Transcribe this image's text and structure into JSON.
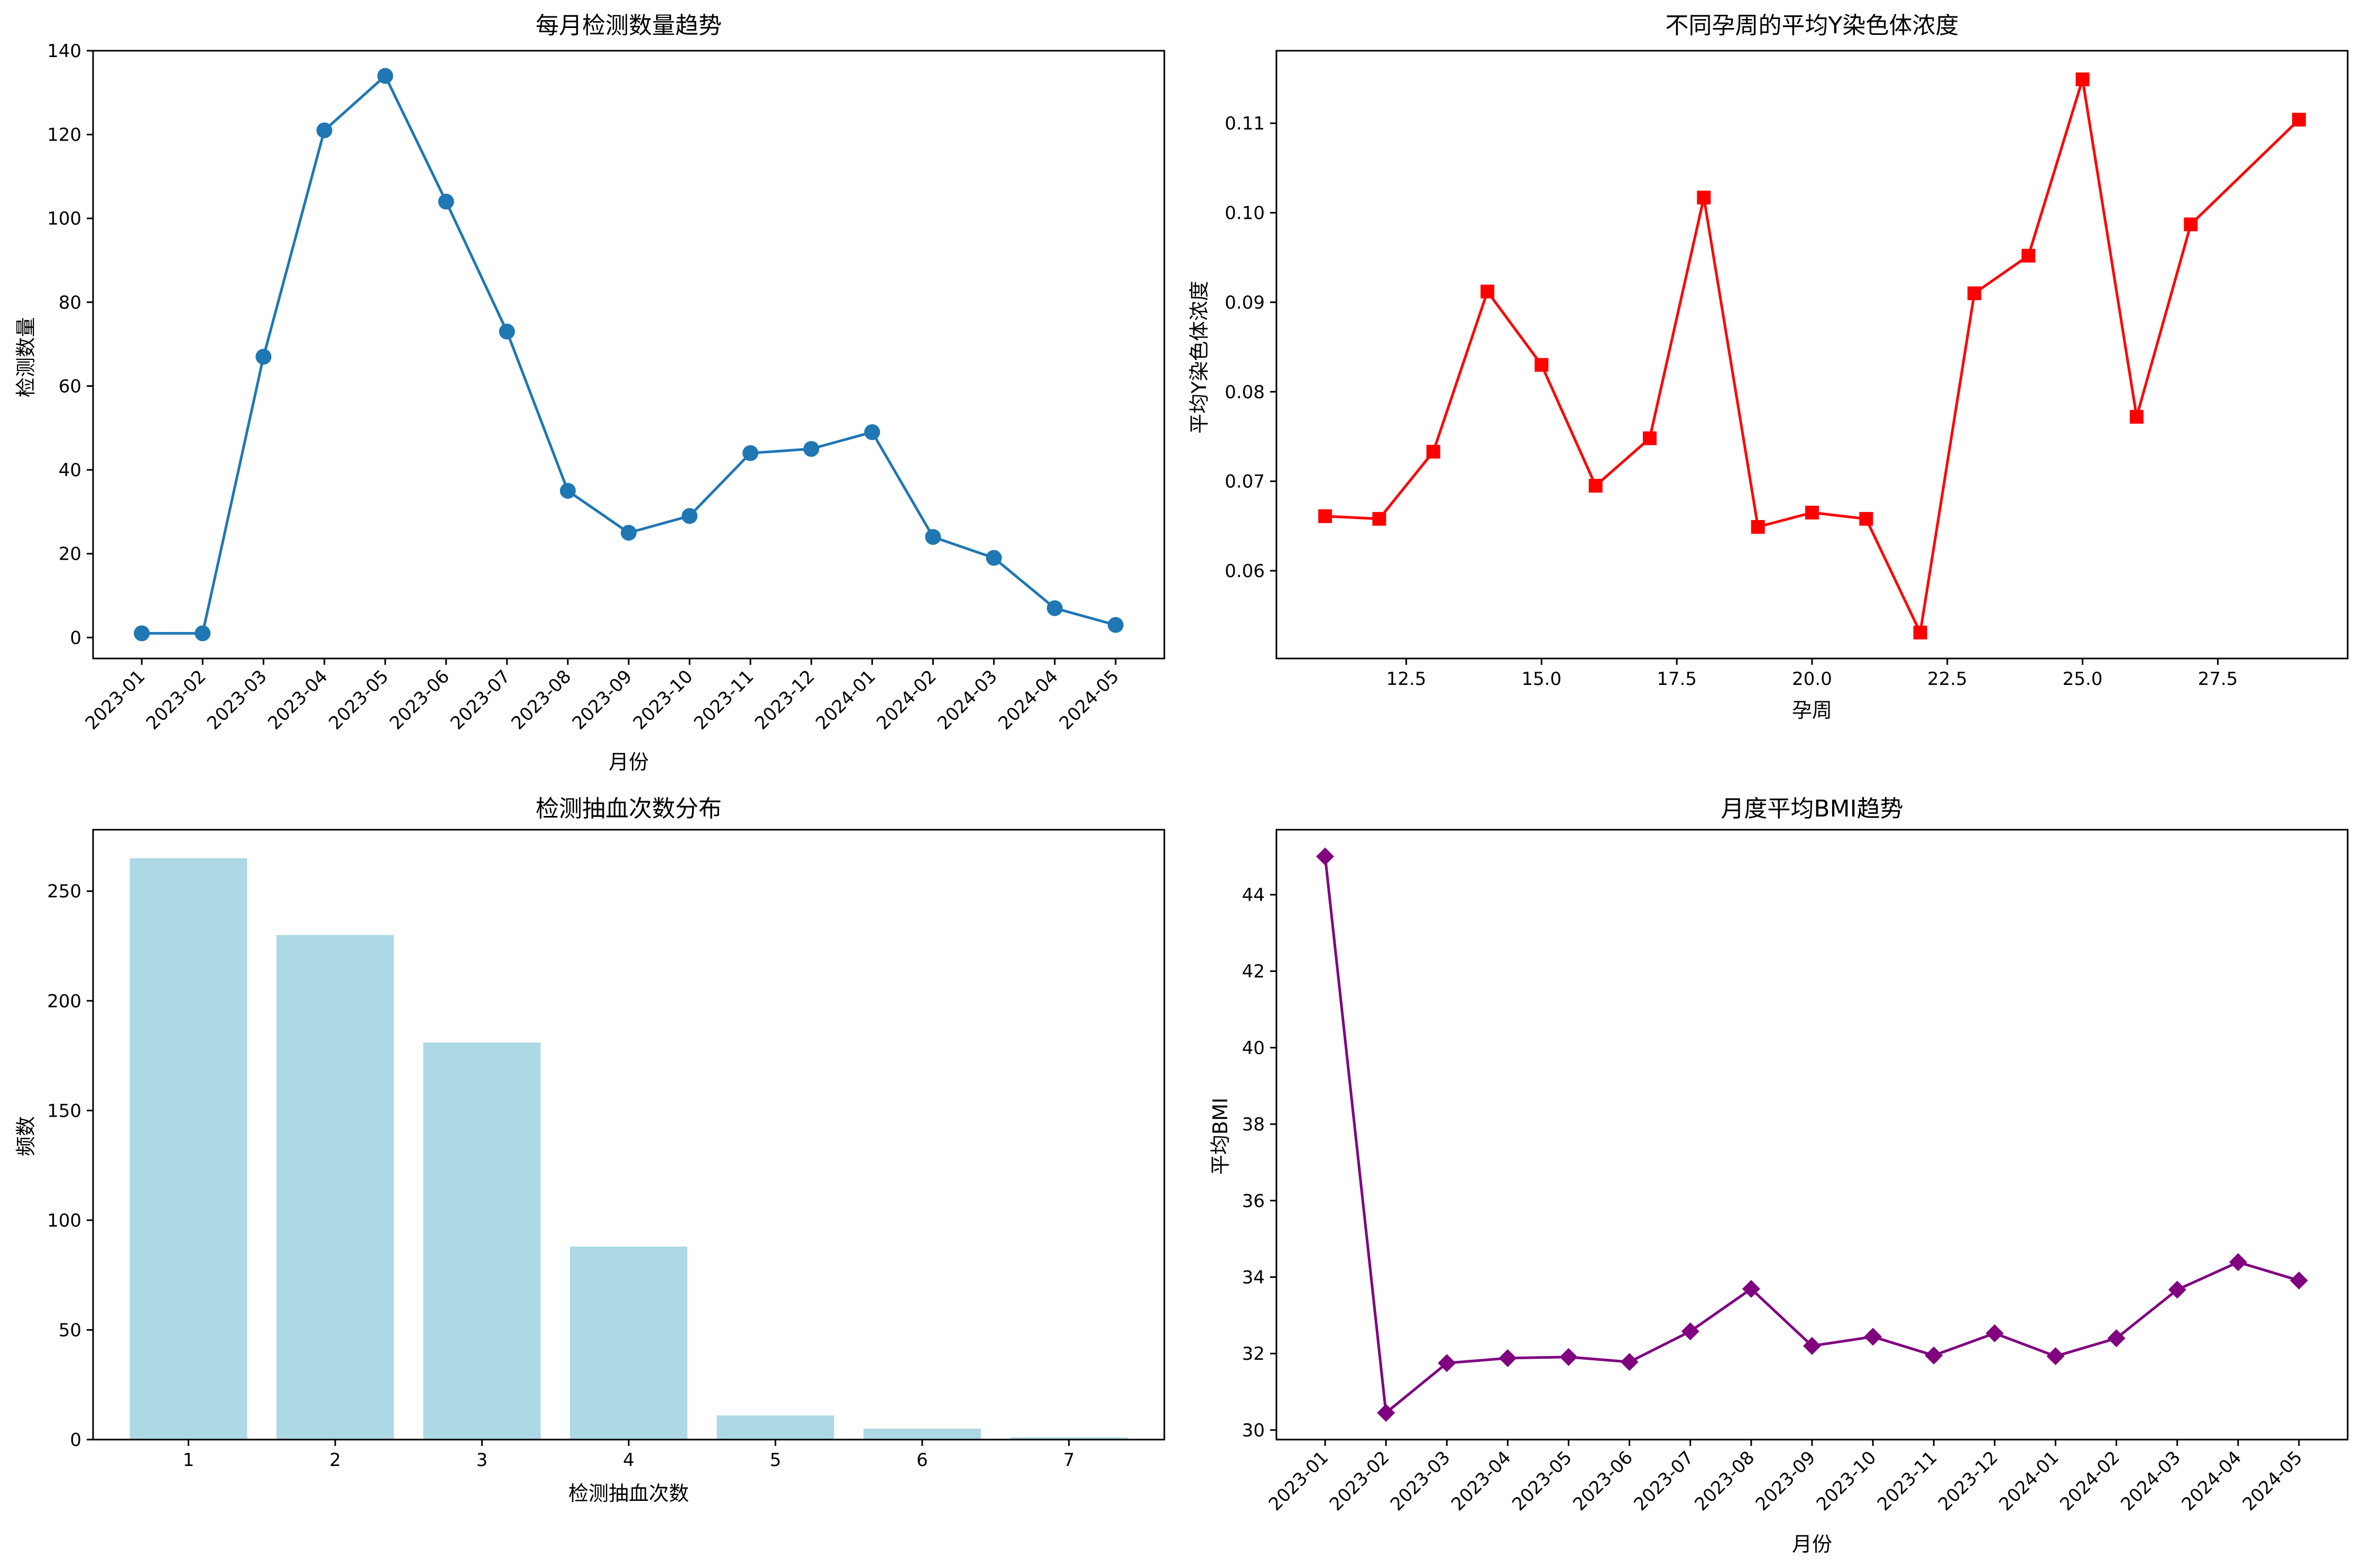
{
  "chart_data": [
    {
      "type": "line",
      "title": "每月检测数量趋势",
      "xlabel": "月份",
      "ylabel": "检测数量",
      "categories": [
        "2023-01",
        "2023-02",
        "2023-03",
        "2023-04",
        "2023-05",
        "2023-06",
        "2023-07",
        "2023-08",
        "2023-09",
        "2023-10",
        "2023-11",
        "2023-12",
        "2024-01",
        "2024-02",
        "2024-03",
        "2024-04",
        "2024-05"
      ],
      "values": [
        1,
        1,
        67,
        121,
        134,
        104,
        73,
        35,
        25,
        29,
        44,
        45,
        49,
        24,
        19,
        7,
        3
      ],
      "ylim": [
        -5,
        140
      ],
      "yticks": [
        0,
        20,
        40,
        60,
        80,
        100,
        120,
        140
      ],
      "color": "#1f77b4",
      "marker": "circle",
      "grid": false
    },
    {
      "type": "line",
      "title": "不同孕周的平均Y染色体浓度",
      "xlabel": "孕周",
      "ylabel": "平均Y染色体浓度",
      "x": [
        11,
        12,
        13,
        14,
        15,
        16,
        17,
        18,
        19,
        20,
        21,
        22,
        23,
        24,
        25,
        26,
        27,
        29
      ],
      "values": [
        0.0661,
        0.0658,
        0.0733,
        0.0912,
        0.083,
        0.0695,
        0.0748,
        0.1017,
        0.0649,
        0.0665,
        0.0658,
        0.0531,
        0.091,
        0.0952,
        0.1149,
        0.0772,
        0.0987,
        0.1104
      ],
      "xlim": [
        10.1,
        29.9
      ],
      "ylim": [
        0.0502,
        0.1181
      ],
      "xticks": [
        "12.5",
        "15.0",
        "17.5",
        "20.0",
        "22.5",
        "25.0",
        "27.5"
      ],
      "yticks": [
        "0.06",
        "0.07",
        "0.08",
        "0.09",
        "0.10",
        "0.11"
      ],
      "color": "#ff0000",
      "marker": "square",
      "grid": false
    },
    {
      "type": "bar",
      "title": "检测抽血次数分布",
      "xlabel": "检测抽血次数",
      "ylabel": "频数",
      "categories": [
        "1",
        "2",
        "3",
        "4",
        "5",
        "6",
        "7"
      ],
      "values": [
        265,
        230,
        181,
        88,
        11,
        5,
        1
      ],
      "ylim": [
        0,
        278
      ],
      "yticks": [
        0,
        50,
        100,
        150,
        200,
        250
      ],
      "color": "#add8e6",
      "grid": false
    },
    {
      "type": "line",
      "title": "月度平均BMI趋势",
      "xlabel": "月份",
      "ylabel": "平均BMI",
      "categories": [
        "2023-01",
        "2023-02",
        "2023-03",
        "2023-04",
        "2023-05",
        "2023-06",
        "2023-07",
        "2023-08",
        "2023-09",
        "2023-10",
        "2023-11",
        "2023-12",
        "2024-01",
        "2024-02",
        "2024-03",
        "2024-04",
        "2024-05"
      ],
      "values": [
        45.0,
        30.45,
        31.75,
        31.88,
        31.91,
        31.78,
        32.58,
        33.69,
        32.2,
        32.44,
        31.95,
        32.53,
        31.93,
        32.4,
        33.67,
        34.39,
        33.91
      ],
      "ylim": [
        29.75,
        45.7
      ],
      "yticks": [
        30,
        32,
        34,
        36,
        38,
        40,
        42,
        44
      ],
      "color": "#800080",
      "marker": "diamond",
      "grid": false
    }
  ]
}
